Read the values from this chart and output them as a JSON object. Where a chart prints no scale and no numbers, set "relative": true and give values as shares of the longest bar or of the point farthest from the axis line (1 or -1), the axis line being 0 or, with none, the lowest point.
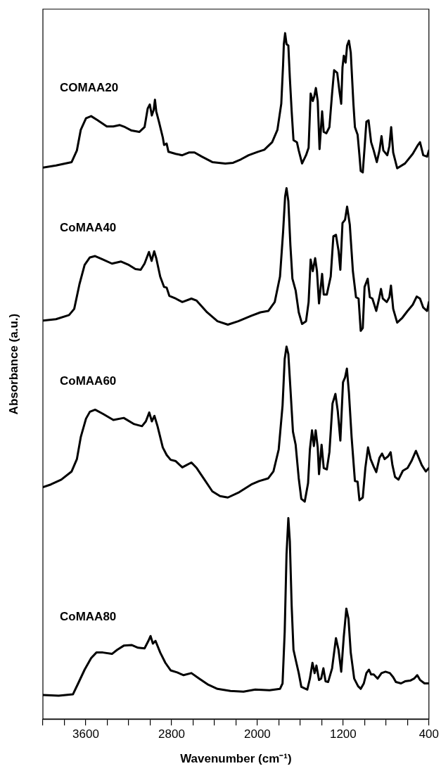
{
  "chart_data": {
    "type": "line",
    "relative": true,
    "xlabel": "Wavenumber (cm⁻¹)",
    "ylabel": "Absorbance (a.u.)",
    "xlim": [
      4000,
      400
    ],
    "xticks": [
      {
        "value": 4000,
        "label": null
      },
      {
        "value": 3800,
        "label": null
      },
      3600,
      {
        "value": 3400,
        "label": null
      },
      {
        "value": 3200,
        "label": null
      },
      {
        "value": 3000,
        "label": null
      },
      2800,
      {
        "value": 2600,
        "label": null
      },
      {
        "value": 2400,
        "label": null
      },
      {
        "value": 2200,
        "label": null
      },
      2000,
      {
        "value": 1800,
        "label": null
      },
      {
        "value": 1600,
        "label": null
      },
      {
        "value": 1400,
        "label": null
      },
      1200,
      {
        "value": 1000,
        "label": null
      },
      {
        "value": 800,
        "label": null
      },
      {
        "value": 600,
        "label": null
      },
      400
    ],
    "grid": false,
    "legend": false,
    "marker": "none",
    "line_style": "solid",
    "series": [
      {
        "name": "COMAA20",
        "color": "#000000",
        "x": [
          4000,
          3878,
          3732,
          3683,
          3647,
          3598,
          3550,
          3489,
          3404,
          3343,
          3283,
          3234,
          3173,
          3101,
          3052,
          3023,
          3003,
          2984,
          2967,
          2955,
          2943,
          2918,
          2882,
          2870,
          2846,
          2829,
          2761,
          2700,
          2639,
          2586,
          2518,
          2420,
          2299,
          2226,
          2153,
          2081,
          1996,
          1935,
          1862,
          1813,
          1777,
          1760,
          1753,
          1741,
          1728,
          1711,
          1697,
          1680,
          1663,
          1631,
          1614,
          1583,
          1546,
          1522,
          1503,
          1483,
          1469,
          1454,
          1437,
          1420,
          1396,
          1381,
          1357,
          1328,
          1303,
          1284,
          1255,
          1235,
          1218,
          1206,
          1194,
          1177,
          1163,
          1146,
          1129,
          1104,
          1090,
          1065,
          1048,
          1036,
          1017,
          1000,
          983,
          963,
          939,
          915,
          886,
          861,
          842,
          825,
          788,
          769,
          752,
          733,
          696,
          623,
          551,
          502,
          483,
          453,
          417,
          400
        ],
        "values": [
          0.804,
          0.807,
          0.812,
          0.829,
          0.859,
          0.876,
          0.879,
          0.873,
          0.864,
          0.864,
          0.866,
          0.863,
          0.858,
          0.856,
          0.863,
          0.89,
          0.896,
          0.88,
          0.888,
          0.903,
          0.886,
          0.871,
          0.848,
          0.837,
          0.839,
          0.827,
          0.824,
          0.822,
          0.826,
          0.826,
          0.82,
          0.812,
          0.81,
          0.811,
          0.816,
          0.822,
          0.827,
          0.83,
          0.841,
          0.859,
          0.897,
          0.954,
          0.984,
          1,
          0.984,
          0.982,
          0.935,
          0.886,
          0.844,
          0.841,
          0.829,
          0.81,
          0.822,
          0.833,
          0.912,
          0.901,
          0.908,
          0.92,
          0.901,
          0.831,
          0.886,
          0.856,
          0.854,
          0.863,
          0.912,
          0.946,
          0.942,
          0.916,
          0.897,
          0.95,
          0.967,
          0.957,
          0.982,
          0.989,
          0.972,
          0.897,
          0.863,
          0.852,
          0.822,
          0.799,
          0.797,
          0.833,
          0.871,
          0.873,
          0.841,
          0.829,
          0.812,
          0.829,
          0.85,
          0.829,
          0.822,
          0.835,
          0.863,
          0.826,
          0.803,
          0.81,
          0.824,
          0.837,
          0.841,
          0.822,
          0.82,
          0.829
        ]
      },
      {
        "name": "CoMAA40",
        "color": "#000000",
        "x": [
          4000,
          3878,
          3756,
          3708,
          3659,
          3611,
          3562,
          3513,
          3441,
          3356,
          3271,
          3198,
          3137,
          3088,
          3052,
          3011,
          2986,
          2962,
          2943,
          2906,
          2870,
          2846,
          2821,
          2761,
          2700,
          2615,
          2566,
          2469,
          2372,
          2275,
          2178,
          2056,
          1971,
          1898,
          1838,
          1789,
          1760,
          1741,
          1728,
          1711,
          1692,
          1673,
          1643,
          1614,
          1583,
          1546,
          1522,
          1503,
          1483,
          1461,
          1444,
          1425,
          1396,
          1381,
          1352,
          1316,
          1291,
          1267,
          1243,
          1226,
          1206,
          1182,
          1163,
          1138,
          1109,
          1080,
          1056,
          1036,
          1017,
          1000,
          971,
          951,
          927,
          891,
          866,
          847,
          830,
          793,
          769,
          754,
          733,
          696,
          648,
          599,
          551,
          514,
          483,
          453,
          417,
          400
        ],
        "values": [
          0.581,
          0.583,
          0.589,
          0.598,
          0.634,
          0.662,
          0.673,
          0.675,
          0.67,
          0.664,
          0.667,
          0.662,
          0.656,
          0.655,
          0.664,
          0.681,
          0.668,
          0.682,
          0.672,
          0.645,
          0.63,
          0.629,
          0.617,
          0.613,
          0.608,
          0.613,
          0.61,
          0.593,
          0.58,
          0.575,
          0.58,
          0.588,
          0.593,
          0.595,
          0.608,
          0.645,
          0.71,
          0.762,
          0.774,
          0.755,
          0.691,
          0.642,
          0.625,
          0.593,
          0.576,
          0.58,
          0.608,
          0.67,
          0.653,
          0.672,
          0.653,
          0.606,
          0.649,
          0.619,
          0.619,
          0.645,
          0.704,
          0.706,
          0.683,
          0.655,
          0.723,
          0.728,
          0.747,
          0.721,
          0.653,
          0.615,
          0.613,
          0.566,
          0.57,
          0.63,
          0.642,
          0.615,
          0.613,
          0.595,
          0.612,
          0.627,
          0.613,
          0.608,
          0.615,
          0.632,
          0.598,
          0.578,
          0.585,
          0.595,
          0.604,
          0.616,
          0.613,
          0.6,
          0.595,
          0.608
        ]
      },
      {
        "name": "CoMAA60",
        "color": "#000000",
        "x": [
          4000,
          3926,
          3829,
          3732,
          3683,
          3647,
          3598,
          3562,
          3513,
          3441,
          3343,
          3246,
          3149,
          3076,
          3040,
          3008,
          2984,
          2960,
          2931,
          2882,
          2846,
          2809,
          2761,
          2700,
          2663,
          2615,
          2566,
          2493,
          2420,
          2348,
          2275,
          2178,
          2056,
          1983,
          1898,
          1850,
          1801,
          1765,
          1745,
          1728,
          1711,
          1692,
          1668,
          1643,
          1614,
          1590,
          1558,
          1527,
          1510,
          1490,
          1473,
          1456,
          1437,
          1425,
          1401,
          1381,
          1352,
          1328,
          1299,
          1272,
          1250,
          1226,
          1201,
          1182,
          1165,
          1146,
          1121,
          1090,
          1065,
          1048,
          1017,
          993,
          968,
          944,
          915,
          891,
          861,
          837,
          813,
          781,
          757,
          740,
          716,
          684,
          643,
          599,
          563,
          521,
          490,
          466,
          429,
          400
        ],
        "values": [
          0.338,
          0.342,
          0.349,
          0.361,
          0.379,
          0.411,
          0.438,
          0.448,
          0.451,
          0.445,
          0.436,
          0.439,
          0.43,
          0.427,
          0.434,
          0.447,
          0.434,
          0.442,
          0.427,
          0.396,
          0.385,
          0.378,
          0.376,
          0.367,
          0.37,
          0.374,
          0.366,
          0.349,
          0.332,
          0.325,
          0.323,
          0.33,
          0.342,
          0.347,
          0.351,
          0.361,
          0.393,
          0.457,
          0.525,
          0.543,
          0.532,
          0.483,
          0.419,
          0.4,
          0.351,
          0.321,
          0.317,
          0.344,
          0.393,
          0.421,
          0.398,
          0.421,
          0.396,
          0.357,
          0.4,
          0.366,
          0.364,
          0.389,
          0.46,
          0.474,
          0.449,
          0.406,
          0.491,
          0.498,
          0.511,
          0.476,
          0.411,
          0.347,
          0.346,
          0.319,
          0.323,
          0.366,
          0.396,
          0.379,
          0.368,
          0.36,
          0.381,
          0.387,
          0.379,
          0.383,
          0.389,
          0.37,
          0.353,
          0.349,
          0.362,
          0.366,
          0.376,
          0.391,
          0.379,
          0.37,
          0.361,
          0.366
        ]
      },
      {
        "name": "CoMAA80",
        "color": "#000000",
        "x": [
          3999,
          3853,
          3720,
          3671,
          3611,
          3550,
          3501,
          3441,
          3356,
          3307,
          3246,
          3173,
          3113,
          3052,
          3016,
          2996,
          2974,
          2950,
          2906,
          2858,
          2809,
          2748,
          2688,
          2615,
          2542,
          2457,
          2372,
          2251,
          2129,
          2020,
          1886,
          1789,
          1765,
          1745,
          1728,
          1711,
          1697,
          1680,
          1663,
          1639,
          1614,
          1590,
          1534,
          1510,
          1486,
          1466,
          1449,
          1425,
          1405,
          1384,
          1364,
          1340,
          1303,
          1267,
          1243,
          1218,
          1194,
          1170,
          1150,
          1129,
          1097,
          1061,
          1036,
          1007,
          983,
          959,
          939,
          915,
          878,
          842,
          805,
          764,
          733,
          708,
          660,
          623,
          575,
          538,
          509,
          483,
          441,
          400
        ],
        "values": [
          0.035,
          0.034,
          0.036,
          0.052,
          0.072,
          0.089,
          0.097,
          0.097,
          0.095,
          0.101,
          0.107,
          0.108,
          0.104,
          0.103,
          0.114,
          0.121,
          0.11,
          0.114,
          0.097,
          0.082,
          0.071,
          0.068,
          0.064,
          0.067,
          0.059,
          0.05,
          0.044,
          0.041,
          0.04,
          0.043,
          0.042,
          0.044,
          0.052,
          0.127,
          0.24,
          0.293,
          0.259,
          0.165,
          0.101,
          0.084,
          0.067,
          0.047,
          0.043,
          0.059,
          0.082,
          0.067,
          0.078,
          0.057,
          0.059,
          0.074,
          0.055,
          0.054,
          0.074,
          0.118,
          0.101,
          0.069,
          0.12,
          0.161,
          0.146,
          0.097,
          0.059,
          0.048,
          0.044,
          0.052,
          0.067,
          0.072,
          0.065,
          0.065,
          0.059,
          0.067,
          0.069,
          0.067,
          0.061,
          0.054,
          0.052,
          0.055,
          0.056,
          0.059,
          0.064,
          0.057,
          0.052,
          0.052
        ]
      }
    ]
  }
}
